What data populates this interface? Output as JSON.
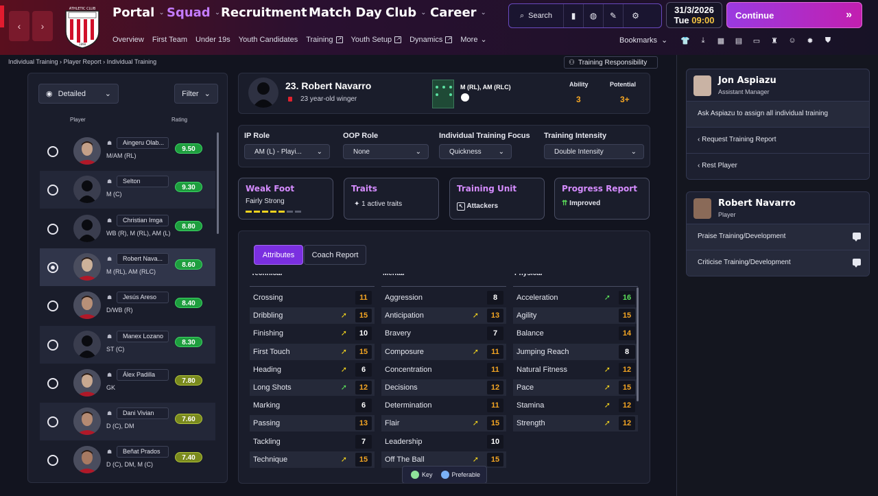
{
  "topnav": {
    "items": [
      {
        "label": "Portal",
        "active": false
      },
      {
        "label": "Squad",
        "active": true
      },
      {
        "label": "Recruitment",
        "active": false
      },
      {
        "label": "Match Day",
        "active": false
      },
      {
        "label": "Club",
        "active": false
      },
      {
        "label": "Career",
        "active": false
      }
    ],
    "crest_text": "ATHLETIC CLUB",
    "crest_year": "1898",
    "search_label": "Search",
    "date": "31/3/2026",
    "day": "Tue",
    "time": "09:00",
    "continue_label": "Continue",
    "bookmarks_label": "Bookmarks"
  },
  "subnav": {
    "items": [
      "Overview",
      "First Team",
      "Under 19s",
      "Youth Candidates",
      "Training",
      "Youth Setup",
      "Dynamics",
      "More"
    ]
  },
  "breadcrumb": {
    "items": [
      "Individual Training",
      "Player Report",
      "Individual Training"
    ]
  },
  "training_responsibility": "Training Responsibility",
  "list": {
    "view_label": "Detailed",
    "filter_label": "Filter",
    "col_player": "Player",
    "col_rating": "Rating",
    "players": [
      {
        "name": "Aingeru Olab...",
        "pos": "M/AM (RL)",
        "rating": "9.50",
        "selected": false
      },
      {
        "name": "Selton",
        "pos": "M (C)",
        "rating": "9.30",
        "selected": false
      },
      {
        "name": "Christian Imga",
        "pos": "WB (R), M (RL), AM (L)",
        "rating": "8.80",
        "selected": false
      },
      {
        "name": "Robert Nava...",
        "pos": "M (RL), AM (RLC)",
        "rating": "8.60",
        "selected": true
      },
      {
        "name": "Jesús Areso",
        "pos": "D/WB (R)",
        "rating": "8.40",
        "selected": false
      },
      {
        "name": "Manex Lozano",
        "pos": "ST (C)",
        "rating": "8.30",
        "selected": false
      },
      {
        "name": "Álex Padilla",
        "pos": "GK",
        "rating": "7.80",
        "selected": false
      },
      {
        "name": "Dani Vivian",
        "pos": "D (C), DM",
        "rating": "7.60",
        "selected": false
      },
      {
        "name": "Beñat Prados",
        "pos": "D (C), DM, M (C)",
        "rating": "7.40",
        "selected": false
      }
    ]
  },
  "player": {
    "title": "23. Robert Navarro",
    "desc": "23 year-old winger",
    "positions": "M (RL), AM (RLC)",
    "ability_label": "Ability",
    "potential_label": "Potential",
    "ability": "3",
    "potential": "3+"
  },
  "roles": {
    "ip_label": "IP Role",
    "ip_value": "AM (L) - Playi...",
    "oop_label": "OOP Role",
    "oop_value": "None",
    "focus_label": "Individual Training Focus",
    "focus_value": "Quickness",
    "intensity_label": "Training Intensity",
    "intensity_value": "Double Intensity"
  },
  "cards": {
    "weak_foot_title": "Weak Foot",
    "weak_foot_value": "Fairly Strong",
    "weak_foot_level": 5,
    "weak_foot_max": 7,
    "traits_title": "Traits",
    "traits_value": "1 active traits",
    "unit_title": "Training Unit",
    "unit_value": "Attackers",
    "progress_title": "Progress Report",
    "progress_value": "Improved"
  },
  "tabs": {
    "attributes": "Attributes",
    "coach": "Coach Report"
  },
  "attributes": {
    "technical_label": "Technical",
    "mental_label": "Mental",
    "physical_label": "Physical",
    "technical": [
      {
        "name": "Crossing",
        "value": "11",
        "icon": ""
      },
      {
        "name": "Dribbling",
        "value": "15",
        "icon": "key"
      },
      {
        "name": "Finishing",
        "value": "10",
        "icon": "key"
      },
      {
        "name": "First Touch",
        "value": "15",
        "icon": "key"
      },
      {
        "name": "Heading",
        "value": "6",
        "icon": "key"
      },
      {
        "name": "Long Shots",
        "value": "12",
        "icon": "pref"
      },
      {
        "name": "Marking",
        "value": "6",
        "icon": ""
      },
      {
        "name": "Passing",
        "value": "13",
        "icon": ""
      },
      {
        "name": "Tackling",
        "value": "7",
        "icon": ""
      },
      {
        "name": "Technique",
        "value": "15",
        "icon": "key"
      }
    ],
    "mental": [
      {
        "name": "Aggression",
        "value": "8",
        "icon": ""
      },
      {
        "name": "Anticipation",
        "value": "13",
        "icon": "key"
      },
      {
        "name": "Bravery",
        "value": "7",
        "icon": ""
      },
      {
        "name": "Composure",
        "value": "11",
        "icon": "key"
      },
      {
        "name": "Concentration",
        "value": "11",
        "icon": ""
      },
      {
        "name": "Decisions",
        "value": "12",
        "icon": ""
      },
      {
        "name": "Determination",
        "value": "11",
        "icon": ""
      },
      {
        "name": "Flair",
        "value": "15",
        "icon": "key"
      },
      {
        "name": "Leadership",
        "value": "10",
        "icon": ""
      },
      {
        "name": "Off The Ball",
        "value": "15",
        "icon": "key"
      }
    ],
    "physical": [
      {
        "name": "Acceleration",
        "value": "16",
        "icon": "pref"
      },
      {
        "name": "Agility",
        "value": "15",
        "icon": ""
      },
      {
        "name": "Balance",
        "value": "14",
        "icon": ""
      },
      {
        "name": "Jumping Reach",
        "value": "8",
        "icon": ""
      },
      {
        "name": "Natural Fitness",
        "value": "12",
        "icon": "key"
      },
      {
        "name": "Pace",
        "value": "15",
        "icon": "key"
      },
      {
        "name": "Stamina",
        "value": "12",
        "icon": "key"
      },
      {
        "name": "Strength",
        "value": "12",
        "icon": "key"
      }
    ]
  },
  "legend": {
    "key": "Key",
    "preferable": "Preferable"
  },
  "assistant": {
    "name": "Jon Aspiazu",
    "role": "Assistant Manager",
    "items": [
      "Ask Aspiazu to assign all individual training",
      "Request Training Report",
      "Rest Player"
    ]
  },
  "player_card": {
    "name": "Robert Navarro",
    "role": "Player",
    "items": [
      "Praise Training/Development",
      "Criticise Training/Development"
    ]
  },
  "colors": {
    "accent": "#7a2fe0",
    "rating_green": "#1e9e3e",
    "rating_olive": "#7a8a1e",
    "value_orange": "#f5a623",
    "value_green": "#5be05a"
  }
}
